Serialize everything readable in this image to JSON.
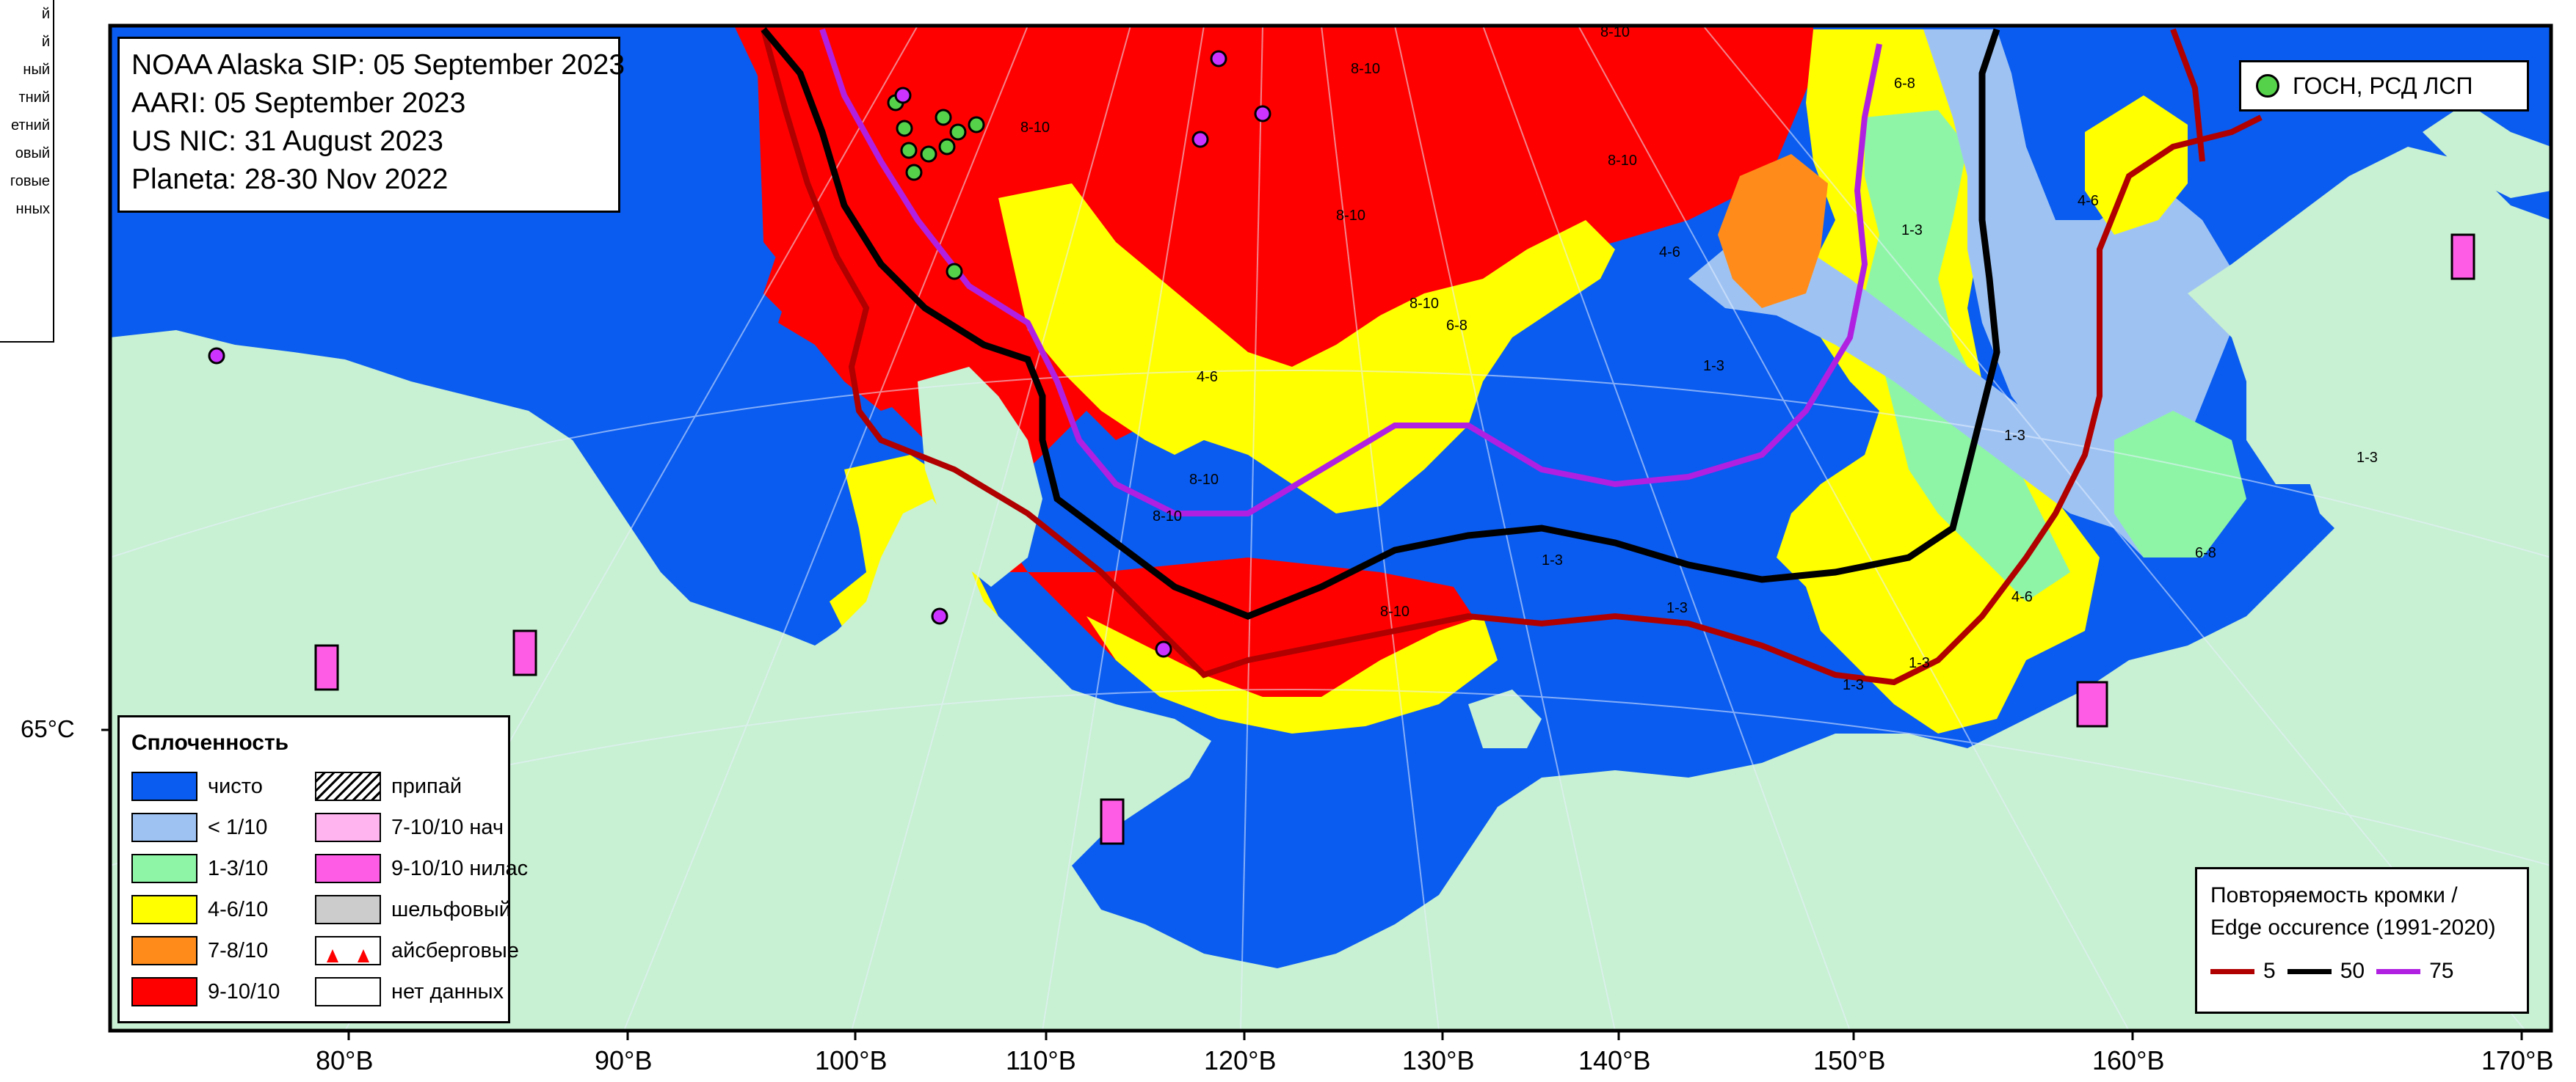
{
  "sources": {
    "line1": "NOAA Alaska SIP: 05 September 2023",
    "line2": "AARI: 05 September 2023",
    "line3": "US NIC: 31 August 2023",
    "line4": "Planeta: 28-30 Nov 2022"
  },
  "marker_legend": {
    "label": "ГОСН, РСД ЛСП",
    "color": "#55d24a"
  },
  "concentration_legend": {
    "title": "Сплоченность",
    "items": [
      {
        "label": "чисто",
        "color": "#0a5cf0"
      },
      {
        "label": "припай",
        "color": "hatch"
      },
      {
        "label": "< 1/10",
        "color": "#9ec3f3"
      },
      {
        "label": "7-10/10 нач",
        "color": "#ffb3ef"
      },
      {
        "label": "1-3/10",
        "color": "#8ef5a6"
      },
      {
        "label": "9-10/10 нилас",
        "color": "#ff5ce6"
      },
      {
        "label": "4-6/10",
        "color": "#ffff00"
      },
      {
        "label": "шельфовый",
        "color": "#cccccc"
      },
      {
        "label": "7-8/10",
        "color": "#ff8c1a"
      },
      {
        "label": "айсберговые",
        "color": "iceberg"
      },
      {
        "label": "9-10/10",
        "color": "#ff0000"
      },
      {
        "label": "нет данных",
        "color": "#ffffff"
      }
    ]
  },
  "edge_legend": {
    "title1": "Повторяемость кромки /",
    "title2": "Edge occurence (1991-2020)",
    "lines": [
      {
        "label": "5",
        "color": "#b00000"
      },
      {
        "label": "50",
        "color": "#000000"
      },
      {
        "label": "75",
        "color": "#b020e0"
      }
    ]
  },
  "latitude_label": "65°С",
  "longitude_labels": [
    "80°В",
    "90°В",
    "100°В",
    "110°В",
    "120°В",
    "130°В",
    "140°В",
    "150°В",
    "160°В",
    "170°В"
  ],
  "side_legend_fragments": [
    "й",
    "й",
    "ный",
    "",
    "тний",
    "етний",
    "",
    "овый",
    "говые",
    "нных"
  ],
  "region_labels": {
    "sea_910": "8-10",
    "zone_46": "4-6",
    "zone_68": "6-8",
    "zone_13": "1-3"
  },
  "colors": {
    "land": "#c8f0d2",
    "water": "#0a5cf0",
    "ice_910": "#ff0000",
    "ice_46": "#ffff00",
    "ice_13": "#8ef5a6",
    "ice_lt1": "#9ec3f3",
    "ice_78": "#ff8c1a"
  }
}
